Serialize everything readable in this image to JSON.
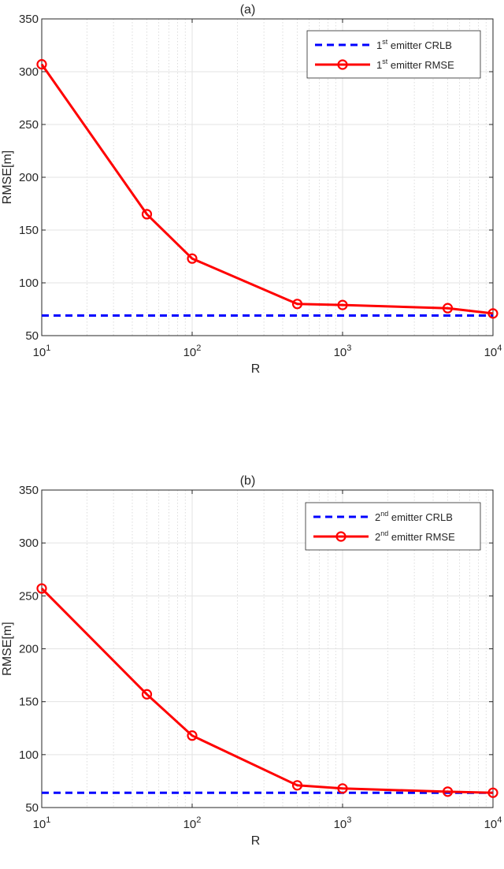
{
  "chart_data": [
    {
      "type": "line",
      "title": "(a)",
      "xlabel": "R",
      "ylabel": "RMSE[m]",
      "xscale": "log",
      "xlim": [
        10,
        10000
      ],
      "ylim": [
        50,
        350
      ],
      "yticks": [
        50,
        100,
        150,
        200,
        250,
        300,
        350
      ],
      "xticks": [
        {
          "base": "10",
          "exp": "1",
          "value": 10
        },
        {
          "base": "10",
          "exp": "2",
          "value": 100
        },
        {
          "base": "10",
          "exp": "3",
          "value": 1000
        },
        {
          "base": "10",
          "exp": "4",
          "value": 10000
        }
      ],
      "grid": true,
      "legend_position": "top-right",
      "series": [
        {
          "legend": {
            "prefix": "1",
            "sup": "st",
            "suffix": " emitter CRLB"
          },
          "color": "#0000ff",
          "style": "dashed",
          "marker": "none",
          "x": [
            10,
            10000
          ],
          "y": [
            69,
            69
          ]
        },
        {
          "legend": {
            "prefix": "1",
            "sup": "st",
            "suffix": " emitter RMSE"
          },
          "color": "#ff0000",
          "style": "solid",
          "marker": "circle",
          "x": [
            10,
            50,
            100,
            500,
            1000,
            5000,
            10000
          ],
          "y": [
            307,
            165,
            123,
            80,
            79,
            76,
            71
          ]
        }
      ]
    },
    {
      "type": "line",
      "title": "(b)",
      "xlabel": "R",
      "ylabel": "RMSE[m]",
      "xscale": "log",
      "xlim": [
        10,
        10000
      ],
      "ylim": [
        50,
        350
      ],
      "yticks": [
        50,
        100,
        150,
        200,
        250,
        300,
        350
      ],
      "xticks": [
        {
          "base": "10",
          "exp": "1",
          "value": 10
        },
        {
          "base": "10",
          "exp": "2",
          "value": 100
        },
        {
          "base": "10",
          "exp": "3",
          "value": 1000
        },
        {
          "base": "10",
          "exp": "4",
          "value": 10000
        }
      ],
      "grid": true,
      "legend_position": "top-right",
      "series": [
        {
          "legend": {
            "prefix": "2",
            "sup": "nd",
            "suffix": " emitter CRLB"
          },
          "color": "#0000ff",
          "style": "dashed",
          "marker": "none",
          "x": [
            10,
            10000
          ],
          "y": [
            64,
            64
          ]
        },
        {
          "legend": {
            "prefix": "2",
            "sup": "nd",
            "suffix": " emitter RMSE"
          },
          "color": "#ff0000",
          "style": "solid",
          "marker": "circle",
          "x": [
            10,
            50,
            100,
            500,
            1000,
            5000,
            10000
          ],
          "y": [
            257,
            157,
            118,
            71,
            68,
            65,
            64
          ]
        }
      ]
    }
  ]
}
